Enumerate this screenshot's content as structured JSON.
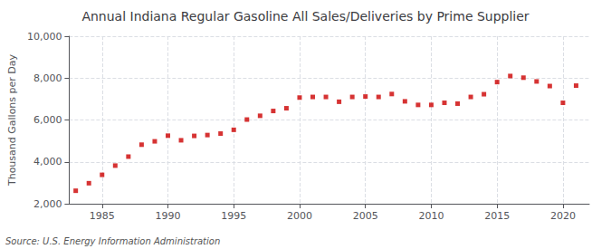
{
  "chart_data": {
    "type": "scatter",
    "title": "Annual Indiana Regular Gasoline All Sales/Deliveries by Prime Supplier",
    "ylabel": "Thousand Gallons per Day",
    "annotations": [
      "Source: U.S. Energy Information Administration"
    ],
    "x": [
      1983,
      1984,
      1985,
      1986,
      1987,
      1988,
      1989,
      1990,
      1991,
      1992,
      1993,
      1994,
      1995,
      1996,
      1997,
      1998,
      1999,
      2000,
      2001,
      2002,
      2003,
      2004,
      2005,
      2006,
      2007,
      2008,
      2009,
      2010,
      2011,
      2012,
      2013,
      2014,
      2015,
      2016,
      2017,
      2018,
      2019,
      2020,
      2021
    ],
    "values": [
      2620,
      2980,
      3380,
      3820,
      4250,
      4820,
      4980,
      5250,
      5030,
      5240,
      5280,
      5350,
      5530,
      6020,
      6200,
      6430,
      6560,
      7070,
      7100,
      7100,
      6870,
      7100,
      7120,
      7100,
      7240,
      6890,
      6720,
      6720,
      6820,
      6780,
      7100,
      7230,
      7810,
      8100,
      8020,
      7840,
      7620,
      6820,
      7640
    ],
    "color": "#cc0000",
    "marker": "square",
    "xlim": [
      1982.5,
      2022
    ],
    "xticks": [
      1985,
      1990,
      1995,
      2000,
      2005,
      2010,
      2015,
      2020
    ],
    "ylim": [
      2000,
      10000
    ],
    "yticks": [
      {
        "value": 2000,
        "label": "2,000"
      },
      {
        "value": 4000,
        "label": "4,000"
      },
      {
        "value": 6000,
        "label": "6,000"
      },
      {
        "value": 8000,
        "label": "8,000"
      },
      {
        "value": 10000,
        "label": "10,000"
      }
    ],
    "grid": true
  }
}
